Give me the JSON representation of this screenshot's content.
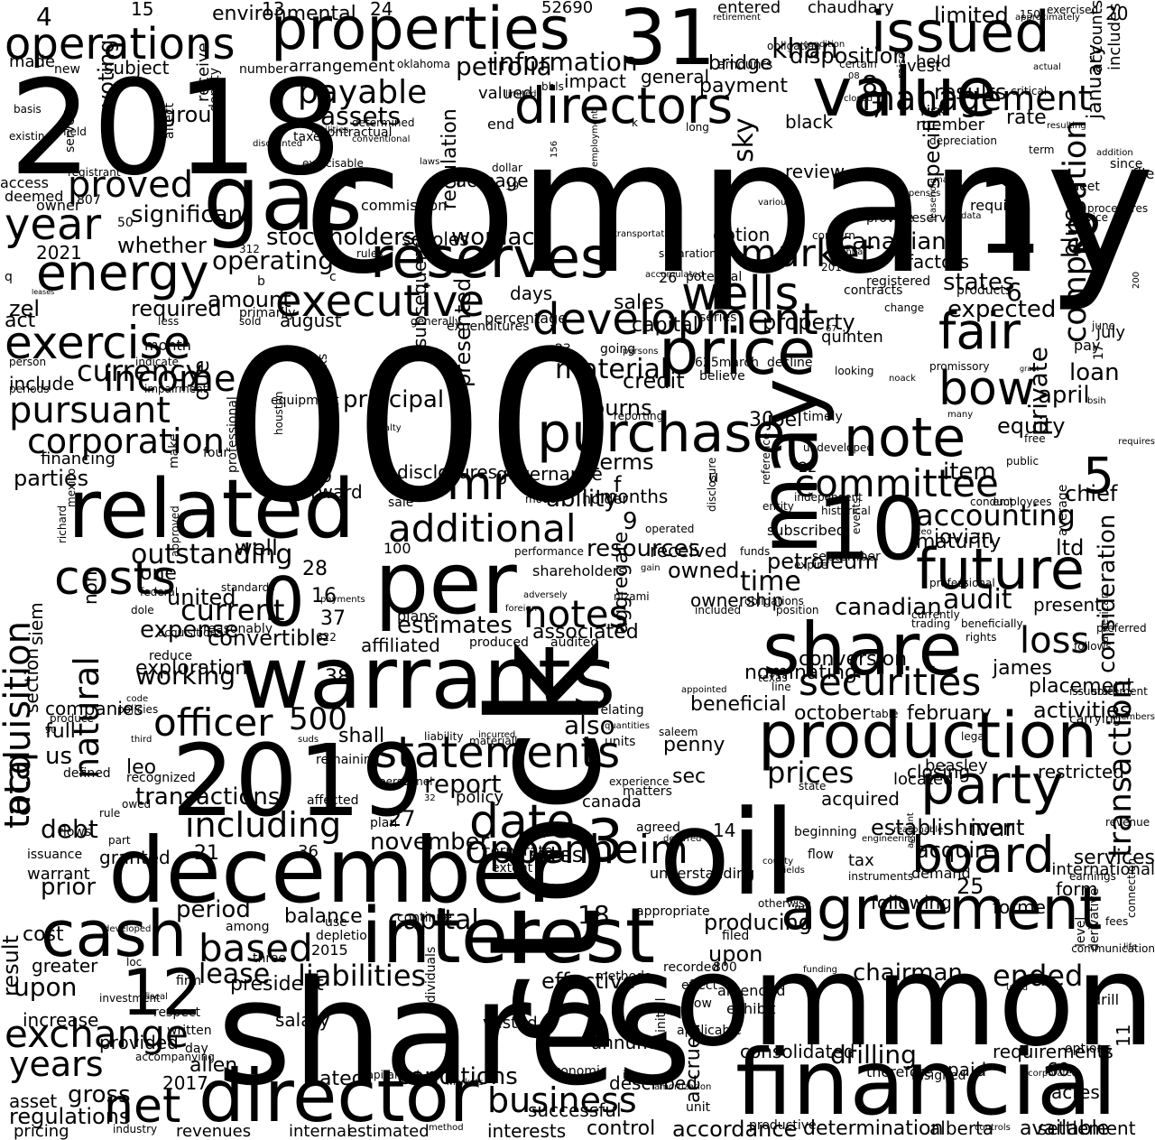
{
  "word_cloud": {
    "colors": {
      "background": "#ffffff",
      "text": "#000000"
    },
    "words": [
      "company",
      "stock",
      "000",
      "shares",
      "oil",
      "common",
      "2018",
      "gas",
      "may",
      "warrants",
      "2019",
      "december",
      "financial",
      "director",
      "interest",
      "related",
      "share",
      "per",
      "properties",
      "31",
      "1",
      "value",
      "issued",
      "price",
      "production",
      "10",
      "reserves",
      "energy",
      "directors",
      "cash",
      "agreement",
      "purchase",
      "note",
      "party",
      "board",
      "future",
      "executive",
      "statements",
      "costs",
      "exercise",
      "officer",
      "net",
      "operations",
      "year",
      "market",
      "wells",
      "fair",
      "bow",
      "additional",
      "committee",
      "compensation",
      "business",
      "including",
      "date",
      "pursuant",
      "0",
      "3",
      "2",
      "5",
      "12",
      "transaction",
      "acquisition",
      "natural",
      "total",
      "mr",
      "interests",
      "oppenheim",
      "notes",
      "securities",
      "exchange",
      "liabilities",
      "based",
      "proved",
      "prices",
      "accounting",
      "operating",
      "ended",
      "loss",
      "capital",
      "years",
      "lease",
      "payable",
      "assets",
      "corporation",
      "working",
      "drilling",
      "development",
      "500",
      "outstanding",
      "audit",
      "current",
      "time",
      "management",
      "due",
      "information",
      "petrolia",
      "sky",
      "khan",
      "rate",
      "january",
      "loan",
      "april",
      "equity",
      "item",
      "chief",
      "ltd",
      "terms",
      "ability",
      "resources",
      "well",
      "one",
      "convertible",
      "exploration",
      "estimates",
      "also",
      "report",
      "debt",
      "transactions",
      "prior",
      "cost",
      "upon",
      "period",
      "balance",
      "president",
      "effective",
      "chairman",
      "upon",
      "producing",
      "activities",
      "february",
      "october",
      "private",
      "expected",
      "states",
      "blue",
      "canadian",
      "principal",
      "amount",
      "required",
      "zel",
      "act",
      "include",
      "income",
      "material",
      "credit",
      "burns",
      "joel",
      "30",
      "property",
      "capital",
      "sales",
      "days",
      "august",
      "whether",
      "2021",
      "significant",
      "stockholders",
      "womack",
      "scholes",
      "option",
      "factors",
      "consideration",
      "james",
      "placement",
      "present",
      "canadian",
      "ownership",
      "owned",
      "petroleum",
      "maturity",
      "jovian",
      "ivar",
      "services",
      "25",
      "form",
      "former",
      "following",
      "tax",
      "acquired",
      "closing",
      "restricted",
      "located",
      "beasley",
      "conversion",
      "nominating",
      "beneficial",
      "penny",
      "sec",
      "leo",
      "us",
      "full",
      "companies",
      "section",
      "siem",
      "non",
      "result",
      "greater",
      "increase",
      "provided",
      "gross",
      "asset",
      "regulations",
      "pricing",
      "revenues",
      "estimated",
      "internal",
      "control",
      "accordance",
      "determination",
      "settlement",
      "alberta",
      "available",
      "accrued",
      "consolidated",
      "requirements",
      "60",
      "11",
      "paid",
      "acres",
      "described",
      "successful",
      "dated",
      "conditions",
      "allen",
      "2017",
      "salary",
      "annum",
      "unit",
      "rates",
      "november",
      "27",
      "21",
      "36",
      "warrant",
      "granted",
      "flows",
      "issuance",
      "policy",
      "canada",
      "14",
      "establishment",
      "acquire",
      "revenue",
      "expense",
      "united",
      "9",
      "f",
      "currency",
      "6",
      "8",
      "7",
      "20",
      "4",
      "15",
      "13",
      "24",
      "52690",
      "entered",
      "chaudhary",
      "retirement",
      "approximately",
      "exercised",
      "accounts",
      "includes",
      "environmental",
      "limited",
      "vest",
      "certain",
      "made",
      "new",
      "number",
      "arrangement",
      "oklahoma",
      "impact",
      "general",
      "payment",
      "subject",
      "bridge",
      "amounts",
      "disposition",
      "held",
      "results",
      "black",
      "member",
      "risk",
      "basis",
      "existing",
      "field",
      "registrant",
      "valued",
      "receive",
      "deputy",
      "voting",
      "group",
      "affect",
      "served",
      "determined",
      "end",
      "k",
      "long",
      "taxes",
      "contractual",
      "facilities",
      "discounted",
      "exercisable",
      "laws",
      "dollar",
      "19",
      "156",
      "employment",
      "acreage",
      "regulation",
      "review",
      "specific",
      "resulting",
      "term",
      "addition",
      "since",
      "file",
      "access",
      "deemed",
      "owner",
      "807",
      "50",
      "commission",
      "expenses",
      "require",
      "procedures",
      "service",
      "data",
      "leasehold",
      "provide",
      "reserve",
      "various",
      "sheet",
      "july",
      "q",
      "leases",
      "200",
      "b",
      "c",
      "rules",
      "312",
      "transportation",
      "separation",
      "potential",
      "accumulated",
      "concern",
      "registered",
      "contracts",
      "2016",
      "annual",
      "primarily",
      "sold",
      "less",
      "generally",
      "expenditures",
      "percentage",
      "series",
      "change",
      "products",
      "pay",
      "june",
      "17",
      "23",
      "going",
      "67",
      "month",
      "person",
      "indicate",
      "impairment",
      "periods",
      "believe",
      "625march",
      "persons",
      "decline",
      "looking",
      "grant",
      "promissory",
      "noack",
      "bsih",
      "many",
      "equipment",
      "houston",
      "royalty",
      "professional",
      "250",
      "make",
      "four",
      "forward",
      "ii",
      "29",
      "disclosures",
      "governance",
      "financing",
      "parties",
      "sale",
      "months",
      "received",
      "reporting",
      "timely",
      "undeveloped",
      "public",
      "free",
      "requires",
      "subsequently",
      "presented",
      "risks",
      "model",
      "holder",
      "operated",
      "performance",
      "100",
      "shareholders",
      "gain",
      "disclosure",
      "entity",
      "reference",
      "independent",
      "subscribed",
      "september",
      "expire",
      "historical",
      "events",
      "ceo",
      "average",
      "employees",
      "conduct",
      "mexico",
      "richard",
      "approved",
      "federal",
      "standards",
      "reasonably",
      "dole",
      "acquisitions",
      "reduce",
      "622",
      "payments",
      "foreign",
      "adversely",
      "plans",
      "nizami",
      "associated",
      "affiliated",
      "audited",
      "produced",
      "aggregate",
      "included",
      "position",
      "obligations",
      "currently",
      "trading",
      "beneficially",
      "preferred",
      "follows",
      "rights",
      "american",
      "texas",
      "line",
      "issuable",
      "statement",
      "carrying",
      "members",
      "legal",
      "table",
      "appointed",
      "saleem",
      "policies",
      "code",
      "produce",
      "90",
      "third",
      "suds",
      "shall",
      "liability",
      "incurred",
      "quantities",
      "relating",
      "units",
      "materially",
      "remaining",
      "recognized",
      "defined",
      "owed",
      "rule",
      "affected",
      "personnel",
      "32",
      "x",
      "experience",
      "state",
      "matters",
      "agreed",
      "deferred",
      "beginning",
      "engineering",
      "reasonable",
      "account",
      "06",
      "part",
      "corporate",
      "extent",
      "understanding",
      "county",
      "fields",
      "flow",
      "instruments",
      "demand",
      "international",
      "use",
      "continue",
      "depletion",
      "2015",
      "among",
      "three",
      "developed",
      "loc",
      "800",
      "funding",
      "filed",
      "recorded",
      "effect",
      "life",
      "derivative",
      "level",
      "fees",
      "connection",
      "communication",
      "investment",
      "fiscal",
      "firm",
      "respect",
      "individuals",
      "34",
      "vested",
      "written",
      "day",
      "accompanying",
      "capitalized",
      "markets",
      "economic",
      "iii",
      "amortization",
      "initial",
      "applicable",
      "amended",
      "exhibit",
      "options",
      "therefore",
      "resigned",
      "industry",
      "method",
      "productive",
      "controls",
      "drill",
      "otherwise",
      "iv",
      "appropriate",
      "incorporated",
      "used",
      "earnings",
      "150",
      "obligation",
      "condition",
      "actual",
      "closed",
      "critical",
      "raise",
      "conventional",
      "limited",
      "bbls",
      "depreciation",
      "plan",
      "methods",
      "low",
      "u",
      "38",
      "funds",
      "professional",
      "e",
      "quinten",
      "26",
      "mark",
      "08",
      "18",
      "37",
      "28",
      "16",
      "22",
      "99",
      "250",
      "2020",
      "inc",
      "using",
      "changes",
      "within"
    ]
  }
}
